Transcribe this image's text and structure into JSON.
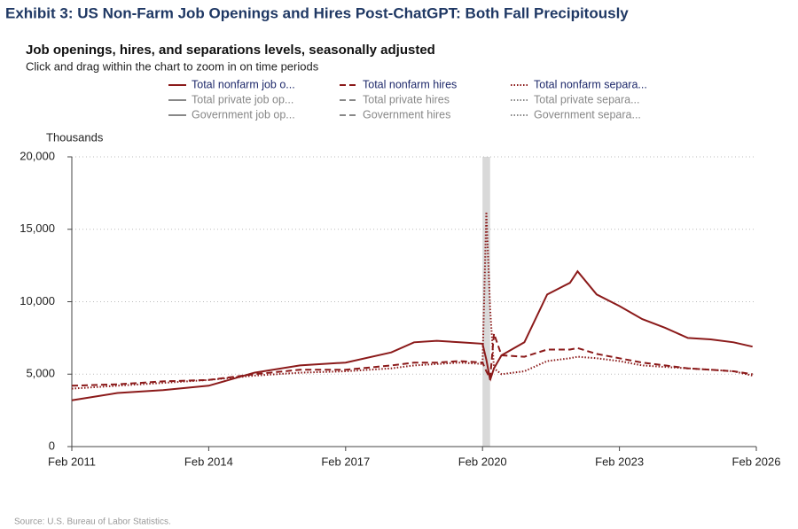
{
  "chart_data": {
    "type": "line",
    "exhibit_title": "Exhibit 3: US Non-Farm Job Openings and Hires Post-ChatGPT: Both Fall Precipitously",
    "title": "Job openings, hires, and separations levels, seasonally adjusted",
    "subtitle": "Click and drag within the chart to zoom in on time periods",
    "y_label": "Thousands",
    "source": "Source: U.S. Bureau of Labor Statistics.",
    "x": [
      "2011-02",
      "2012-02",
      "2013-02",
      "2014-02",
      "2015-02",
      "2016-02",
      "2017-02",
      "2018-02",
      "2018-08",
      "2019-02",
      "2019-08",
      "2020-02",
      "2020-03",
      "2020-04",
      "2020-05",
      "2020-07",
      "2021-01",
      "2021-07",
      "2022-01",
      "2022-03",
      "2022-08",
      "2023-02",
      "2023-08",
      "2024-02",
      "2024-08",
      "2025-02",
      "2025-08",
      "2026-01"
    ],
    "xlim": [
      "2011-02",
      "2026-02"
    ],
    "xticks": [
      {
        "value": "2011-02",
        "label": "Feb 2011"
      },
      {
        "value": "2014-02",
        "label": "Feb 2014"
      },
      {
        "value": "2017-02",
        "label": "Feb 2017"
      },
      {
        "value": "2020-02",
        "label": "Feb 2020"
      },
      {
        "value": "2023-02",
        "label": "Feb 2023"
      },
      {
        "value": "2026-02",
        "label": "Feb 2026"
      }
    ],
    "ylim": [
      0,
      20000
    ],
    "yticks": [
      0,
      {
        "value": 5000,
        "label": "5,000"
      },
      {
        "value": 10000,
        "label": "10,000"
      },
      {
        "value": 15000,
        "label": "15,000"
      },
      {
        "value": 20000,
        "label": "20,000"
      }
    ],
    "grid": true,
    "shaded": {
      "from": "2020-02",
      "to": "2020-04",
      "color": "#d9d9d9"
    },
    "series": [
      {
        "name": "Total nonfarm job o...",
        "color": "#8b1a1a",
        "dash": "solid",
        "values": [
          3200,
          3700,
          3900,
          4200,
          5100,
          5600,
          5800,
          6500,
          7200,
          7300,
          7200,
          7100,
          6000,
          4600,
          5400,
          6300,
          7200,
          10500,
          11300,
          12100,
          10500,
          9700,
          8800,
          8200,
          7500,
          7400,
          7200,
          6900
        ]
      },
      {
        "name": "Total nonfarm hires",
        "color": "#8b1a1a",
        "dash": "dashed",
        "values": [
          4200,
          4300,
          4500,
          4600,
          5000,
          5300,
          5300,
          5600,
          5800,
          5800,
          5900,
          5800,
          5200,
          4700,
          7800,
          6300,
          6200,
          6700,
          6700,
          6800,
          6400,
          6100,
          5800,
          5600,
          5400,
          5300,
          5200,
          5000
        ]
      },
      {
        "name": "Total nonfarm separa...",
        "color": "#8b1a1a",
        "dash": "dotted",
        "values": [
          4000,
          4200,
          4400,
          4600,
          4900,
          5100,
          5200,
          5400,
          5600,
          5700,
          5800,
          5700,
          16200,
          9500,
          5400,
          5000,
          5200,
          5900,
          6100,
          6200,
          6100,
          5900,
          5600,
          5500,
          5400,
          5300,
          5200,
          4900
        ]
      }
    ],
    "inactive_series": [
      {
        "name": "Total private job op...",
        "color": "#888888",
        "dash": "solid"
      },
      {
        "name": "Total private hires",
        "color": "#888888",
        "dash": "dashed"
      },
      {
        "name": "Total private separa...",
        "color": "#888888",
        "dash": "dotted"
      },
      {
        "name": "Government job op...",
        "color": "#888888",
        "dash": "solid"
      },
      {
        "name": "Government hires",
        "color": "#888888",
        "dash": "dashed"
      },
      {
        "name": "Government separa...",
        "color": "#888888",
        "dash": "dotted"
      }
    ]
  }
}
